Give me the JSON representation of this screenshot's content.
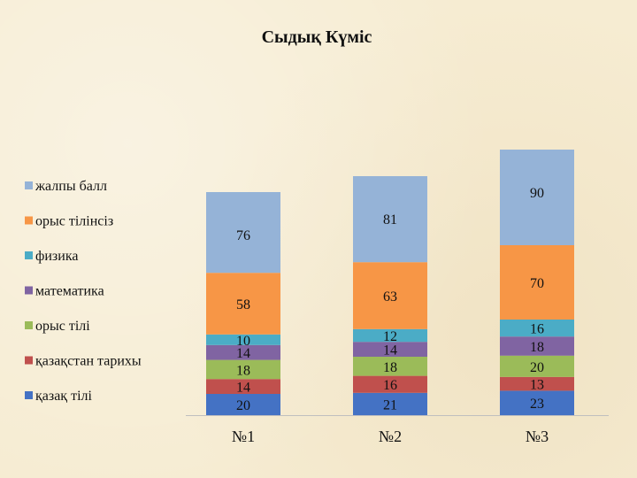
{
  "chart_data": {
    "type": "bar",
    "stacked": true,
    "title": "Сыдық Күміс",
    "categories": [
      "№1",
      "№2",
      "№3"
    ],
    "series": [
      {
        "name": "қазақ тілі",
        "values": [
          20,
          21,
          23
        ],
        "color": "#4472c4"
      },
      {
        "name": "қазақстан тарихы",
        "values": [
          14,
          16,
          13
        ],
        "color": "#c0504d"
      },
      {
        "name": "орыс тілі",
        "values": [
          18,
          18,
          20
        ],
        "color": "#9bbb59"
      },
      {
        "name": "математика",
        "values": [
          14,
          14,
          18
        ],
        "color": "#8064a2"
      },
      {
        "name": "физика",
        "values": [
          10,
          12,
          16
        ],
        "color": "#4bacc6"
      },
      {
        "name": "орыс тілінсіз",
        "values": [
          58,
          63,
          70
        ],
        "color": "#f79646"
      },
      {
        "name": "жалпы балл",
        "values": [
          76,
          81,
          90
        ],
        "color": "#95b3d7"
      }
    ],
    "legend_position": "left",
    "grid": false
  }
}
